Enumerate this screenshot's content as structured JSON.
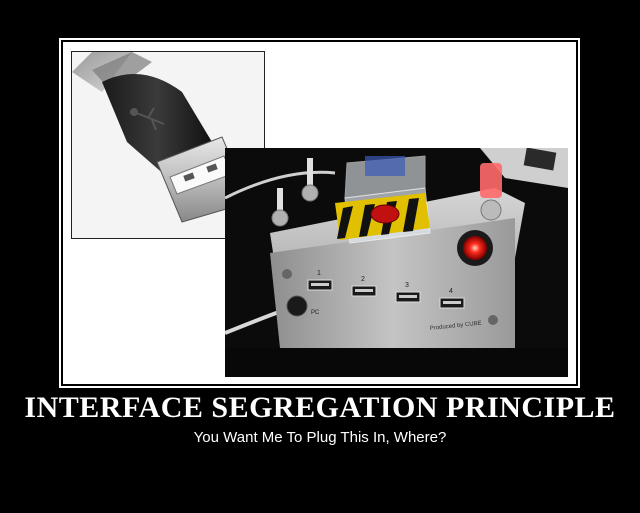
{
  "poster": {
    "title": "INTERFACE SEGREGATION PRINCIPLE",
    "subtitle": "You Want Me To Plug This In, Where?"
  },
  "hub": {
    "port_numbers": [
      "1",
      "2",
      "3",
      "4"
    ],
    "pc_label": "PC",
    "produced_by": "Produced by CUBE"
  },
  "colors": {
    "background": "#000000",
    "frame": "#ffffff",
    "text": "#ffffff",
    "alert_light": "#ff2a1a"
  }
}
